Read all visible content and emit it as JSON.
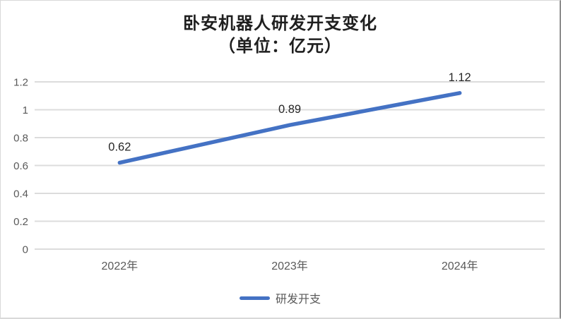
{
  "chart": {
    "title_line1": "卧安机器人研发开支变化",
    "title_line2": "（单位：亿元）"
  },
  "chart_data": {
    "type": "line",
    "title": "卧安机器人研发开支变化（单位：亿元）",
    "categories": [
      "2022年",
      "2023年",
      "2024年"
    ],
    "series": [
      {
        "name": "研发开支",
        "values": [
          0.62,
          0.89,
          1.12
        ]
      }
    ],
    "data_labels": [
      "0.62",
      "0.89",
      "1.12"
    ],
    "xlabel": "",
    "ylabel": "",
    "ylim": [
      0,
      1.2
    ],
    "yticks": [
      0,
      0.2,
      0.4,
      0.6,
      0.8,
      1,
      1.2
    ],
    "ytick_labels": [
      "0",
      "0.2",
      "0.4",
      "0.6",
      "0.8",
      "1",
      "1.2"
    ],
    "grid": true,
    "legend_position": "bottom",
    "colors": {
      "line": "#4472c4",
      "grid": "#dcdcdc",
      "axis_text": "#595959",
      "data_label_text": "#262626",
      "title_text": "#1f1f1f",
      "frame_border": "#d9d9d9"
    }
  },
  "legend": {
    "items": [
      {
        "label": "研发开支",
        "color": "#4472c4"
      }
    ]
  }
}
